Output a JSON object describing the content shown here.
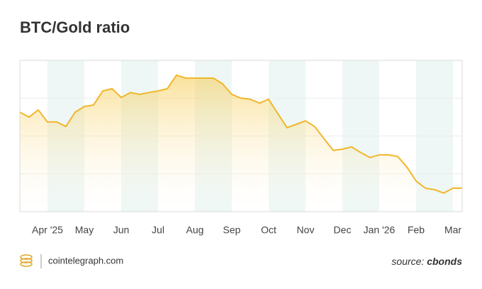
{
  "chart_data": {
    "type": "line",
    "title": "BTC/Gold ratio",
    "categories": [
      null,
      null,
      null,
      "Apr '25",
      null,
      null,
      null,
      "May",
      null,
      null,
      null,
      "Jun",
      null,
      null,
      null,
      "Jul",
      null,
      null,
      null,
      "Aug",
      null,
      null,
      null,
      "Sep",
      null,
      null,
      null,
      "Oct",
      null,
      null,
      null,
      "Nov",
      null,
      null,
      null,
      "Dec",
      null,
      null,
      null,
      "Jan '26",
      null,
      null,
      null,
      "Feb",
      null,
      null,
      null,
      "Mar",
      null
    ],
    "series": [
      {
        "name": "BTC/Gold ratio",
        "color": "#f1b62a",
        "values": [
          2.63,
          2.5,
          2.69,
          2.37,
          2.37,
          2.25,
          2.63,
          2.78,
          2.82,
          3.19,
          3.25,
          3.02,
          3.15,
          3.1,
          3.15,
          3.19,
          3.25,
          3.61,
          3.53,
          3.53,
          3.53,
          3.53,
          3.38,
          3.1,
          3.0,
          2.97,
          2.87,
          2.97,
          2.59,
          2.22,
          2.31,
          2.4,
          2.25,
          1.93,
          1.62,
          1.65,
          1.71,
          1.56,
          1.43,
          1.5,
          1.5,
          1.46,
          1.18,
          0.81,
          0.62,
          0.58,
          0.49,
          0.62,
          0.62
        ]
      }
    ],
    "ylim": [
      0,
      4
    ],
    "grid": true,
    "band_color": "#eef7f6"
  },
  "footer": {
    "site": "cointelegraph.com",
    "source_label": "source:",
    "source_name": "cbonds"
  }
}
